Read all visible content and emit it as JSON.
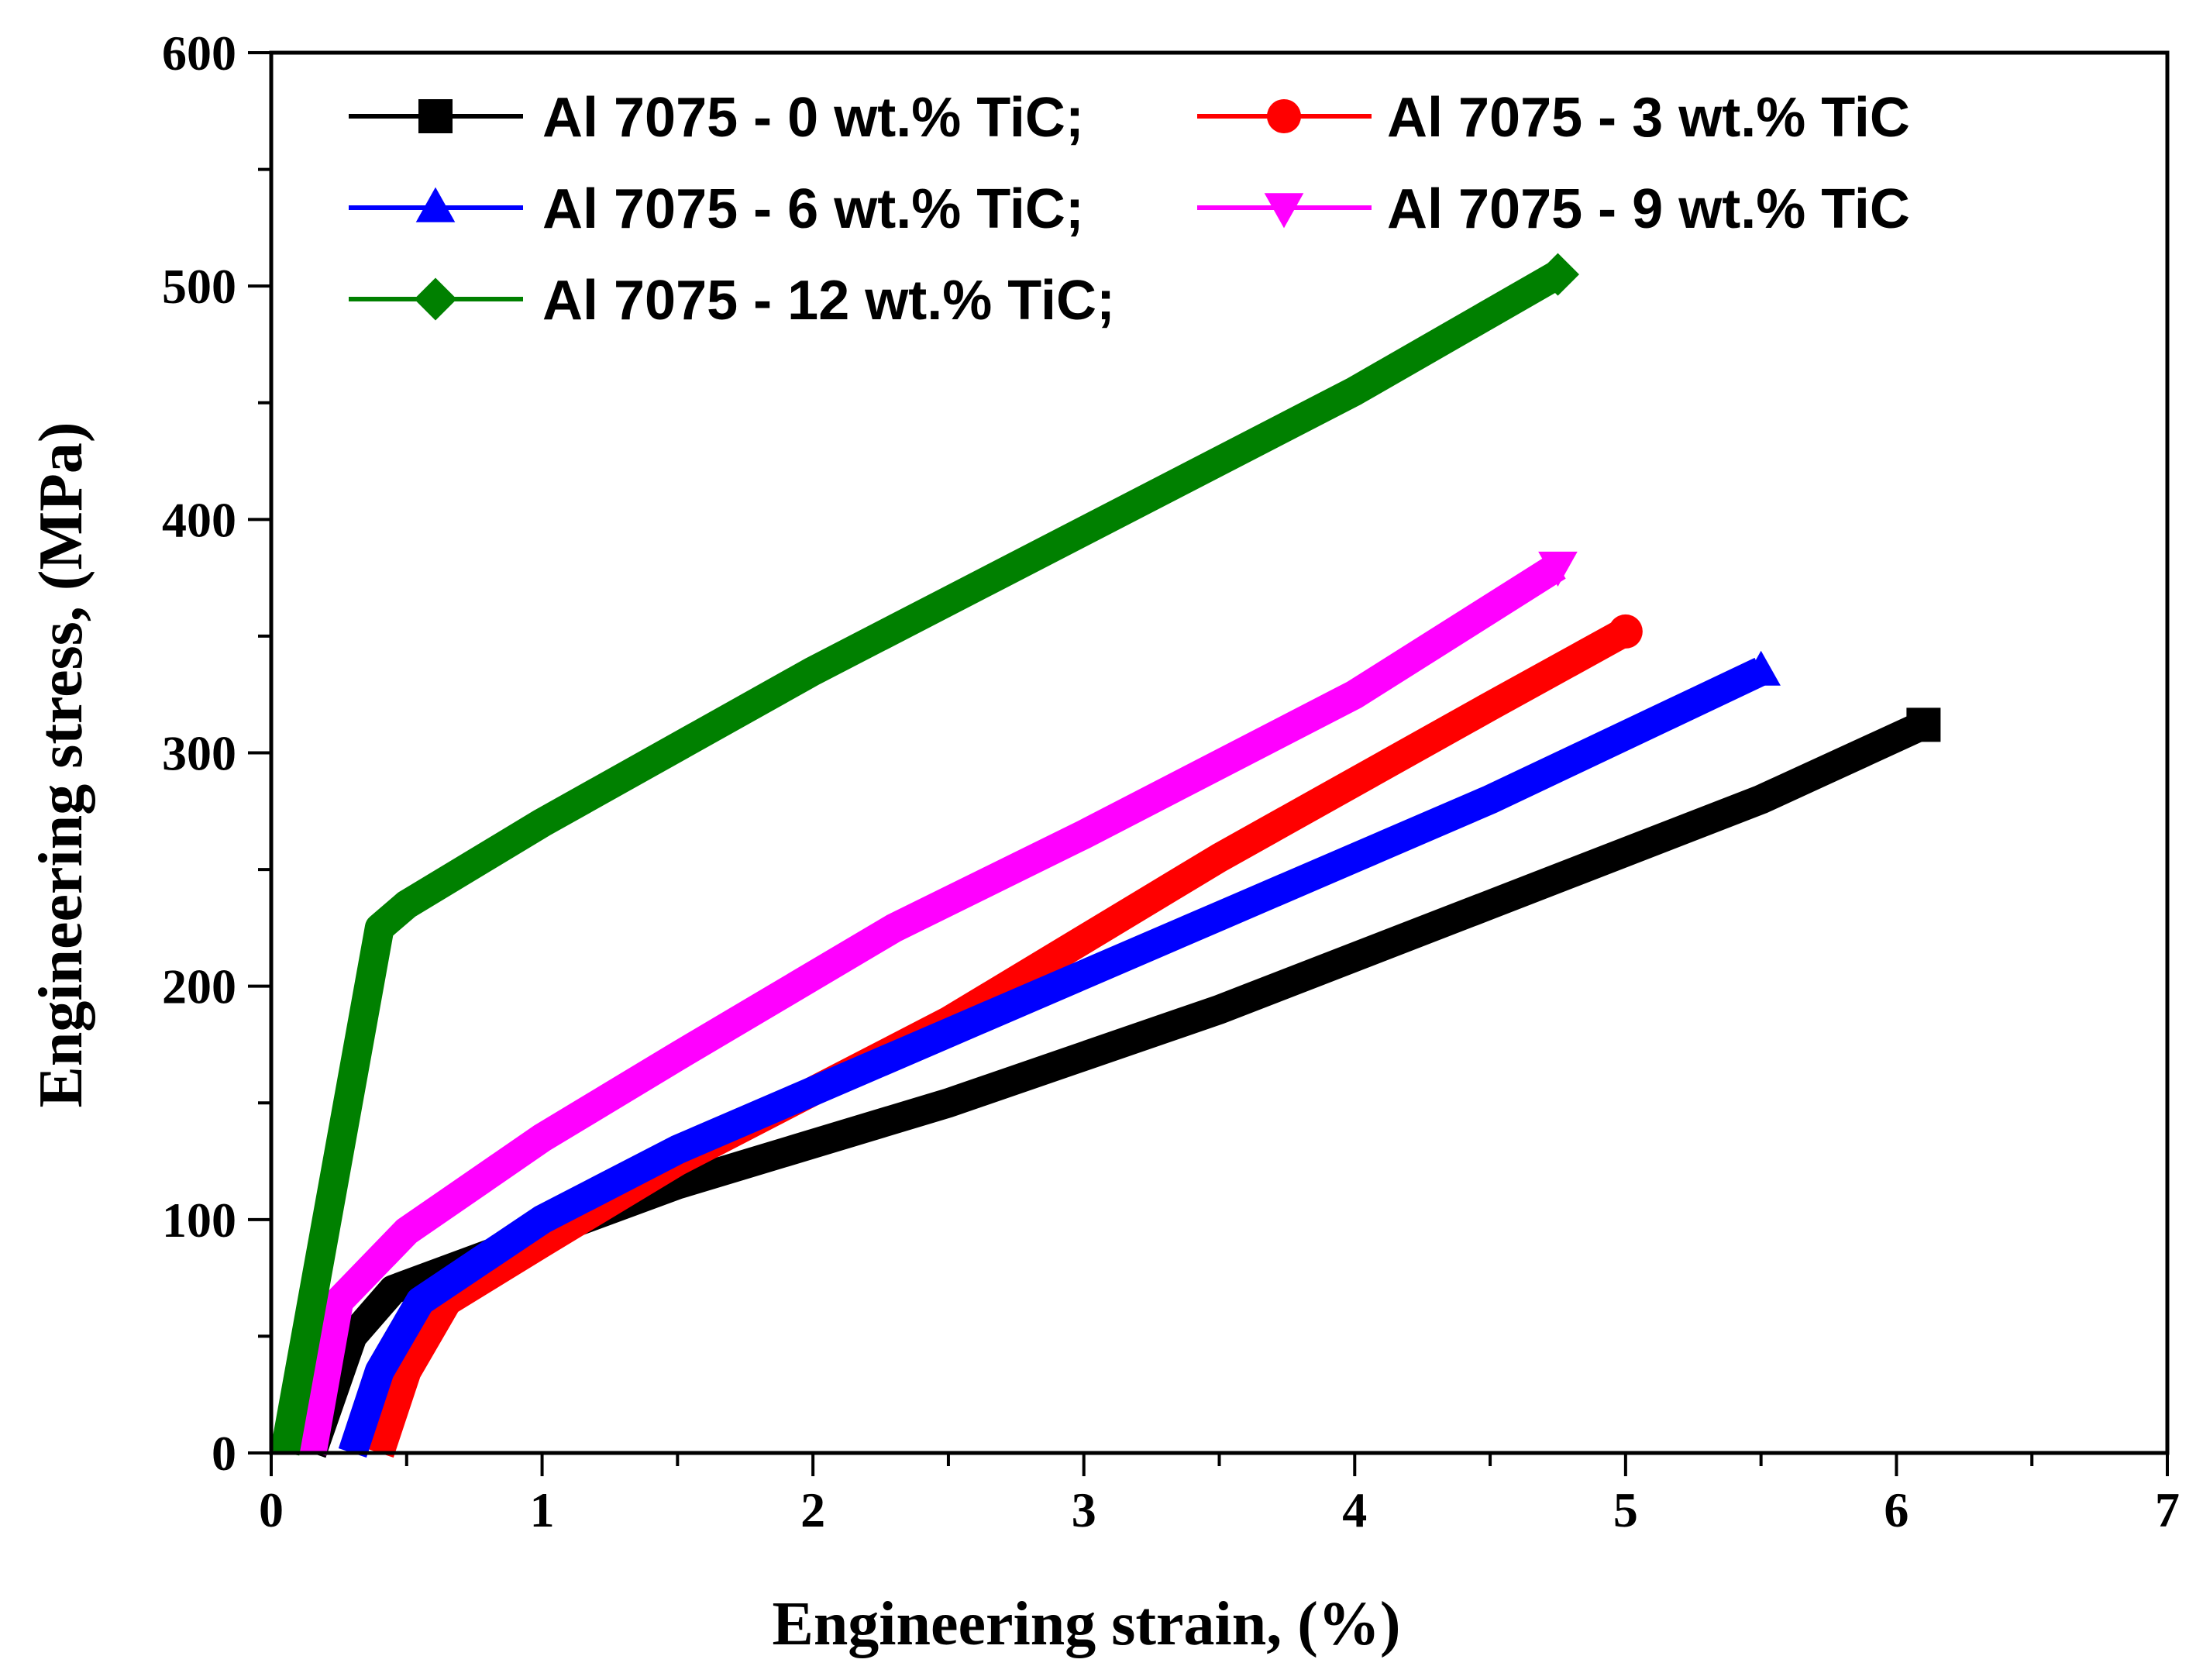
{
  "chart_data": {
    "type": "line",
    "xlabel": "Engineering strain, (%)",
    "ylabel": "Engineering stress, (MPa)",
    "xlim": [
      0,
      7
    ],
    "ylim": [
      0,
      600
    ],
    "xticks": [
      0,
      1,
      2,
      3,
      4,
      5,
      6,
      7
    ],
    "yticks": [
      0,
      100,
      200,
      300,
      400,
      500,
      600
    ],
    "x_tick_labels": [
      "0",
      "1",
      "2",
      "3",
      "4",
      "5",
      "6",
      "7"
    ],
    "y_tick_labels": [
      "0",
      "100",
      "200",
      "300",
      "400",
      "500",
      "600"
    ],
    "grid": false,
    "legend_position": "top-left",
    "series": [
      {
        "name": "Al 7075 - 0 wt.% TiC;",
        "legend_label": "Al 7075 - 0 wt.% TiC;",
        "color": "#000000",
        "marker": "square",
        "x": [
          0.15,
          0.3,
          0.45,
          0.8,
          1.5,
          2.5,
          3.5,
          4.5,
          5.5,
          6.1
        ],
        "y": [
          0,
          50,
          70,
          85,
          115,
          150,
          190,
          235,
          280,
          312
        ]
      },
      {
        "name": "Al 7075 - 3 wt.% TiC",
        "legend_label": "Al 7075 - 3 wt.% TiC",
        "color": "#ff0000",
        "marker": "circle",
        "x": [
          0.4,
          0.5,
          0.65,
          1.0,
          1.5,
          2.5,
          3.5,
          4.5,
          5.0
        ],
        "y": [
          0,
          35,
          65,
          90,
          125,
          185,
          255,
          320,
          352
        ]
      },
      {
        "name": "Al 7075 - 6 wt.% TiC;",
        "legend_label": "Al 7075 - 6 wt.% TiC;",
        "color": "#0000ff",
        "marker": "triangle-up",
        "x": [
          0.3,
          0.4,
          0.55,
          1.0,
          1.5,
          2.5,
          3.5,
          4.5,
          5.5
        ],
        "y": [
          0,
          35,
          65,
          100,
          130,
          180,
          230,
          280,
          335
        ]
      },
      {
        "name": "Al 7075 - 9 wt.% TiC",
        "legend_label": "Al 7075 - 9 wt.% TiC",
        "color": "#ff00ff",
        "marker": "triangle-down",
        "x": [
          0.15,
          0.25,
          0.5,
          1.0,
          1.5,
          2.3,
          3.0,
          4.0,
          4.75
        ],
        "y": [
          0,
          65,
          95,
          135,
          170,
          225,
          265,
          325,
          380
        ]
      },
      {
        "name": "Al 7075 - 12 wt.% TiC;",
        "legend_label": "Al 7075 - 12 wt.% TiC;",
        "color": "#008000",
        "marker": "diamond",
        "x": [
          0.05,
          0.4,
          0.5,
          1.0,
          2.0,
          3.0,
          4.0,
          4.75
        ],
        "y": [
          0,
          225,
          235,
          270,
          335,
          395,
          455,
          505
        ]
      }
    ]
  }
}
